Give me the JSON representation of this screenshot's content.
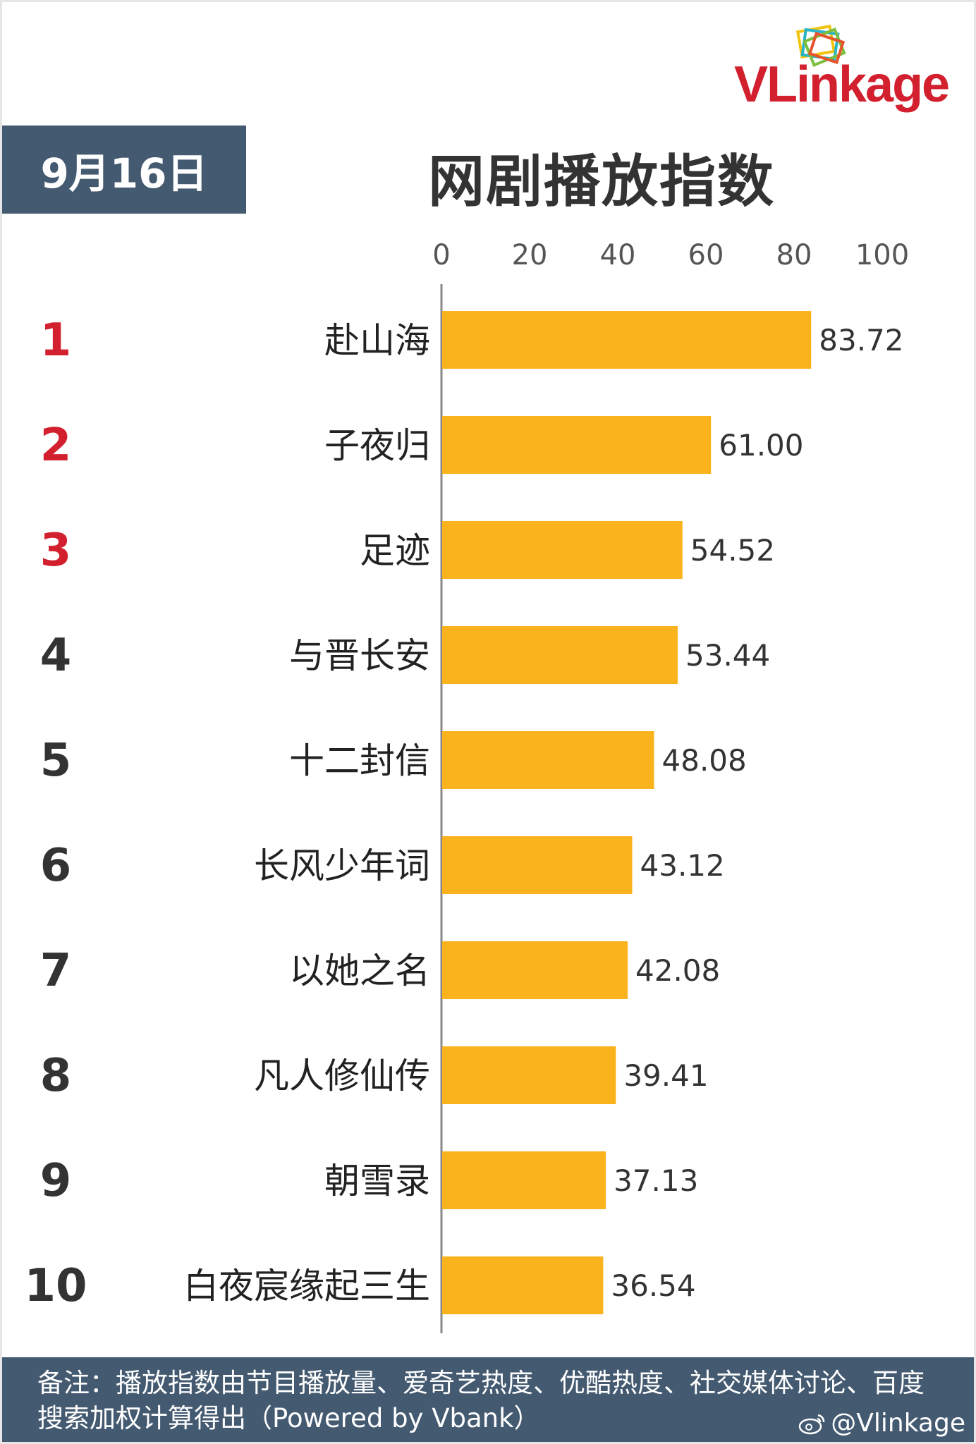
{
  "brand": {
    "name": "VLinkage"
  },
  "header": {
    "date": "9月16日",
    "title": "网剧播放指数"
  },
  "footer": {
    "note": "备注：播放指数由节目播放量、爱奇艺热度、优酷热度、社交媒体讨论、百度搜索加权计算得出（Powered by Vbank）",
    "weibo_handle": "@Vlinkage"
  },
  "colors": {
    "bar": "#fbb31d",
    "top_rank": "#d2202f",
    "rank": "#333333",
    "header_bg": "#445a71"
  },
  "chart_data": {
    "type": "bar",
    "orientation": "horizontal",
    "title": "网剧播放指数",
    "xlim": [
      0,
      100
    ],
    "ticks": [
      "0",
      "20",
      "40",
      "60",
      "80",
      "100"
    ],
    "ranks": [
      "1",
      "2",
      "3",
      "4",
      "5",
      "6",
      "7",
      "8",
      "9",
      "10"
    ],
    "categories": [
      "赴山海",
      "子夜归",
      "足迹",
      "与晋长安",
      "十二封信",
      "长风少年词",
      "以她之名",
      "凡人修仙传",
      "朝雪录",
      "白夜宸缘起三生"
    ],
    "values": [
      83.72,
      61.0,
      54.52,
      53.44,
      48.08,
      43.12,
      42.08,
      39.41,
      37.13,
      36.54
    ],
    "value_labels": [
      "83.72",
      "61.00",
      "54.52",
      "53.44",
      "48.08",
      "43.12",
      "42.08",
      "39.41",
      "37.13",
      "36.54"
    ],
    "grid": false,
    "legend": "none"
  }
}
